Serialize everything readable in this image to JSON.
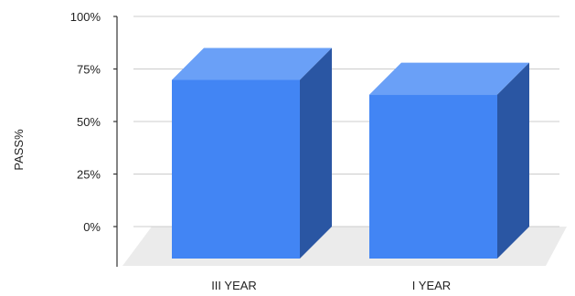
{
  "chart_data": {
    "type": "bar",
    "style": "3d",
    "title": "",
    "xlabel": "",
    "ylabel": "PASS%",
    "categories": [
      "III YEAR",
      "I YEAR"
    ],
    "values": [
      85,
      78
    ],
    "unit": "%",
    "ylim": [
      0,
      100
    ],
    "yticks": [
      0,
      25,
      50,
      75,
      100
    ],
    "ytick_labels": [
      "0%",
      "25%",
      "50%",
      "75%",
      "100%"
    ],
    "grid": true,
    "legend": "none",
    "colors": {
      "bar_front": "#4285f4",
      "bar_top": "#6aa0f7",
      "bar_side": "#2a56a3",
      "floor": "#ebebeb",
      "grid": "#cccccc",
      "axis": "#333333"
    }
  }
}
